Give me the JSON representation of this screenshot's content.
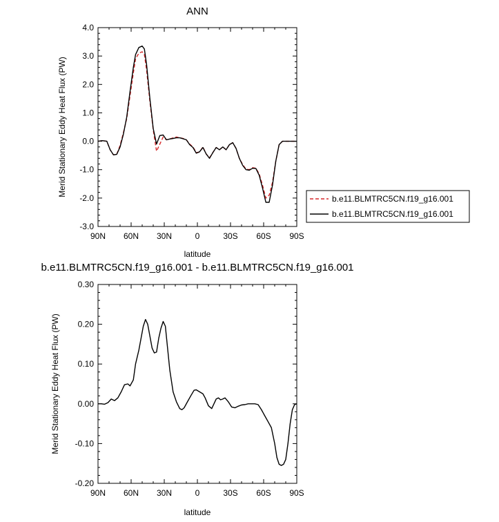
{
  "chart_data": [
    {
      "type": "line",
      "title": "ANN",
      "xlabel": "latitude",
      "ylabel": "Merid Stationary Eddy Heat Flux (PW)",
      "xlim": [
        90,
        -90
      ],
      "ylim": [
        -3.0,
        4.0
      ],
      "xticks": [
        90,
        60,
        30,
        0,
        -30,
        -60,
        -90
      ],
      "xtick_labels": [
        "90N",
        "60N",
        "30N",
        "0",
        "30S",
        "60S",
        "90S"
      ],
      "yticks": [
        4.0,
        3.0,
        2.0,
        1.0,
        0.0,
        -1.0,
        -2.0,
        -3.0
      ],
      "ytick_labels": [
        "4.0",
        "3.0",
        "2.0",
        "1.0",
        "0.0",
        "-1.0",
        "-2.0",
        "-3.0"
      ],
      "legend": {
        "placement": "right-outside"
      },
      "series": [
        {
          "name": "b.e11.BLMTRC5CN.f19_g16.001",
          "color": "#d62728",
          "dash": "dashed",
          "x": [
            90,
            86,
            82,
            79,
            76,
            73,
            70,
            67,
            64,
            61,
            58,
            56,
            53,
            50,
            48,
            46,
            43,
            40,
            37,
            34,
            31,
            28,
            25,
            22,
            19,
            16,
            13,
            10,
            7,
            4,
            1,
            -2,
            -5,
            -8,
            -11,
            -14,
            -17,
            -20,
            -23,
            -26,
            -29,
            -32,
            -35,
            -38,
            -41,
            -44,
            -47,
            -50,
            -53,
            -56,
            -59,
            -62,
            -65,
            -68,
            -71,
            -74,
            -77,
            -80,
            -83,
            -86,
            -90
          ],
          "y": [
            0.0,
            0.02,
            0.0,
            -0.3,
            -0.48,
            -0.45,
            -0.15,
            0.3,
            0.8,
            1.6,
            2.4,
            2.9,
            3.1,
            3.15,
            3.05,
            2.5,
            1.4,
            0.4,
            -0.35,
            -0.1,
            0.15,
            0.05,
            0.08,
            0.12,
            0.15,
            0.12,
            0.1,
            0.05,
            -0.1,
            -0.2,
            -0.4,
            -0.38,
            -0.2,
            -0.45,
            -0.58,
            -0.4,
            -0.22,
            -0.3,
            -0.2,
            -0.3,
            -0.12,
            -0.05,
            -0.25,
            -0.6,
            -0.82,
            -0.98,
            -1.0,
            -0.93,
            -0.95,
            -1.15,
            -1.55,
            -2.0,
            -1.9,
            -1.45,
            -0.7,
            -0.12,
            0.0,
            0.0,
            0.0,
            0.0,
            0.0
          ]
        },
        {
          "name": "b.e11.BLMTRC5CN.f19_g16.001",
          "color": "#000000",
          "dash": "solid",
          "x": [
            90,
            86,
            82,
            79,
            76,
            73,
            70,
            67,
            64,
            61,
            58,
            56,
            53,
            50,
            48,
            46,
            43,
            40,
            37,
            34,
            31,
            28,
            25,
            22,
            19,
            16,
            13,
            10,
            7,
            4,
            1,
            -2,
            -5,
            -8,
            -11,
            -14,
            -17,
            -20,
            -23,
            -26,
            -29,
            -32,
            -35,
            -38,
            -41,
            -44,
            -47,
            -50,
            -53,
            -56,
            -59,
            -62,
            -65,
            -68,
            -71,
            -74,
            -77,
            -80,
            -83,
            -86,
            -90
          ],
          "y": [
            0.0,
            0.02,
            0.0,
            -0.3,
            -0.48,
            -0.46,
            -0.2,
            0.25,
            0.85,
            1.75,
            2.6,
            3.05,
            3.3,
            3.35,
            3.25,
            2.7,
            1.5,
            0.45,
            -0.1,
            0.2,
            0.22,
            0.05,
            0.08,
            0.1,
            0.12,
            0.12,
            0.09,
            0.05,
            -0.12,
            -0.22,
            -0.42,
            -0.37,
            -0.22,
            -0.45,
            -0.6,
            -0.4,
            -0.22,
            -0.3,
            -0.2,
            -0.3,
            -0.12,
            -0.05,
            -0.25,
            -0.6,
            -0.85,
            -1.0,
            -1.02,
            -0.95,
            -0.96,
            -1.2,
            -1.65,
            -2.15,
            -2.15,
            -1.55,
            -0.7,
            -0.12,
            0.0,
            0.0,
            0.0,
            0.0,
            0.0
          ]
        }
      ]
    },
    {
      "type": "line",
      "title": "b.e11.BLMTRC5CN.f19_g16.001 - b.e11.BLMTRC5CN.f19_g16.001",
      "xlabel": "latitude",
      "ylabel": "Merid Stationary Eddy Heat Flux (PW)",
      "xlim": [
        90,
        -90
      ],
      "ylim": [
        -0.2,
        0.3
      ],
      "xticks": [
        90,
        60,
        30,
        0,
        -30,
        -60,
        -90
      ],
      "xtick_labels": [
        "90N",
        "60N",
        "30N",
        "0",
        "30S",
        "60S",
        "90S"
      ],
      "yticks": [
        0.3,
        0.2,
        0.1,
        0.0,
        -0.1,
        -0.2
      ],
      "ytick_labels": [
        "0.30",
        "0.20",
        "0.10",
        "0.00",
        "-0.10",
        "-0.20"
      ],
      "series": [
        {
          "color": "#000000",
          "dash": "solid",
          "x": [
            90,
            87,
            84,
            81,
            78,
            75,
            72,
            69,
            66,
            63,
            61,
            58,
            56,
            53,
            51,
            49,
            47,
            45,
            43,
            41,
            39,
            37,
            35,
            33,
            31,
            29,
            27,
            25,
            22,
            19,
            16,
            14,
            12,
            9,
            6,
            3,
            1,
            -2,
            -5,
            -7,
            -10,
            -13,
            -15,
            -17,
            -19,
            -21,
            -23,
            -25,
            -28,
            -31,
            -34,
            -37,
            -40,
            -43,
            -46,
            -49,
            -52,
            -55,
            -58,
            -61,
            -64,
            -67,
            -70,
            -72,
            -74,
            -76,
            -78,
            -80,
            -82,
            -84,
            -86,
            -88,
            -90
          ],
          "y": [
            0.0,
            0.0,
            -0.001,
            0.003,
            0.012,
            0.008,
            0.015,
            0.03,
            0.048,
            0.05,
            0.045,
            0.06,
            0.1,
            0.135,
            0.165,
            0.195,
            0.212,
            0.2,
            0.17,
            0.14,
            0.128,
            0.13,
            0.165,
            0.19,
            0.207,
            0.195,
            0.14,
            0.085,
            0.03,
            0.005,
            -0.012,
            -0.015,
            -0.01,
            0.005,
            0.02,
            0.034,
            0.035,
            0.03,
            0.025,
            0.015,
            -0.005,
            -0.012,
            0.0,
            0.012,
            0.015,
            0.01,
            0.012,
            0.015,
            0.005,
            -0.008,
            -0.01,
            -0.006,
            -0.003,
            -0.002,
            0.0,
            0.0,
            0.0,
            -0.002,
            -0.015,
            -0.03,
            -0.045,
            -0.06,
            -0.1,
            -0.135,
            -0.152,
            -0.155,
            -0.152,
            -0.14,
            -0.1,
            -0.05,
            -0.015,
            -0.002,
            0.0
          ]
        }
      ]
    }
  ]
}
